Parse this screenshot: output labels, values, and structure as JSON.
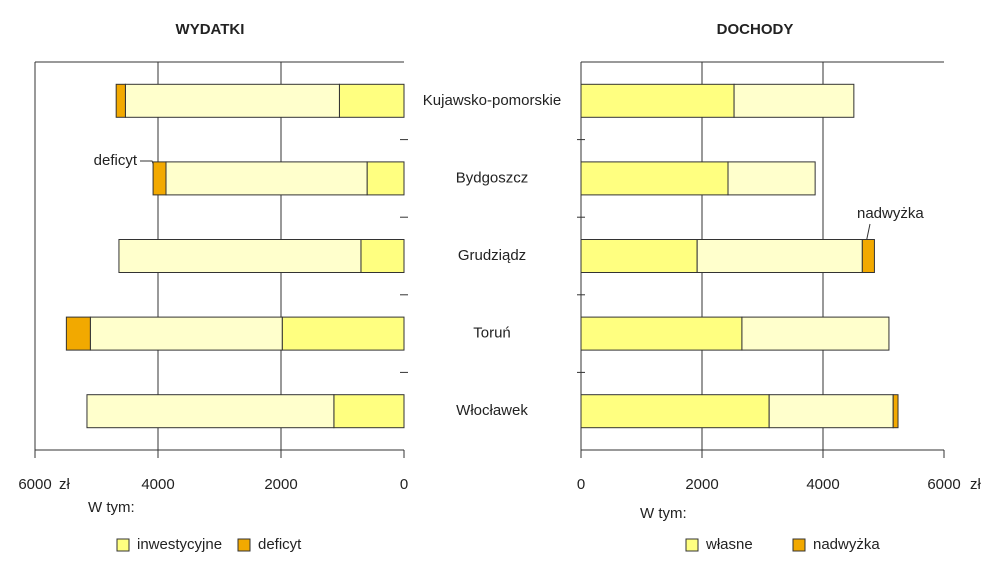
{
  "chart_data": [
    {
      "type": "bar",
      "orientation": "horizontal",
      "stacked": true,
      "title": "WYDATKI",
      "categories": [
        "Kujawsko-pomorskie",
        "Bydgoszcz",
        "Grudziądz",
        "Toruń",
        "Włocławek"
      ],
      "series": [
        {
          "name": "inwestycyjne",
          "color": "#ffff80",
          "values": [
            1050,
            600,
            700,
            1980,
            1140
          ]
        },
        {
          "color": "#ffffcc",
          "values": [
            3480,
            3270,
            3935,
            3120,
            4015
          ]
        },
        {
          "name": "deficyt",
          "color": "#f2a900",
          "values": [
            150,
            210,
            0,
            390,
            0
          ]
        }
      ],
      "xlim": [
        0,
        6000
      ],
      "x_reversed": true,
      "xticks": [
        0,
        2000,
        4000,
        6000
      ],
      "xlabel": "zł",
      "grid": true,
      "annotations": [
        "deficyt"
      ],
      "legend_title": "W tym:"
    },
    {
      "type": "bar",
      "orientation": "horizontal",
      "stacked": true,
      "title": "DOCHODY",
      "series": [
        {
          "name": "własne",
          "color": "#ffff80",
          "values": [
            2530,
            2430,
            1920,
            2660,
            3110
          ]
        },
        {
          "color": "#ffffcc",
          "values": [
            1980,
            1440,
            2730,
            2430,
            2050
          ]
        },
        {
          "name": "nadwyżka",
          "color": "#f2a900",
          "values": [
            0,
            0,
            200,
            0,
            80
          ]
        }
      ],
      "xlim": [
        0,
        6000
      ],
      "x_reversed": false,
      "xticks": [
        0,
        2000,
        4000,
        6000
      ],
      "xlabel": "zł",
      "grid": true,
      "annotations": [
        "nadwyżka"
      ],
      "legend_title": "W tym:"
    }
  ]
}
